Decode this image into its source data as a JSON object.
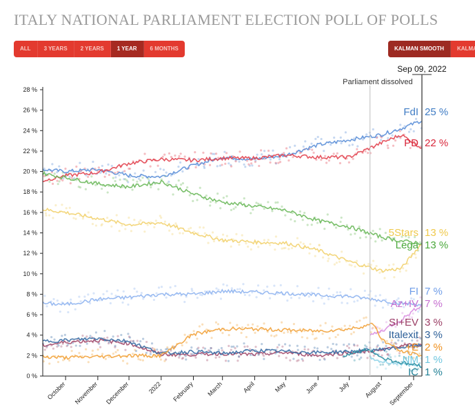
{
  "title": "ITALY NATIONAL PARLIAMENT ELECTION POLL OF POLLS",
  "range_buttons": [
    {
      "label": "ALL",
      "active": false
    },
    {
      "label": "3 YEARS",
      "active": false
    },
    {
      "label": "2 YEARS",
      "active": false
    },
    {
      "label": "1 YEAR",
      "active": true
    },
    {
      "label": "6 MONTHS",
      "active": false
    }
  ],
  "smooth_buttons": [
    {
      "label": "KALMAN SMOOTH",
      "active": true
    },
    {
      "label": "KALMAN",
      "active": false
    }
  ],
  "cursor_date": "Sep 09, 2022",
  "annotation": "Parliament dissolved",
  "chart_data": {
    "type": "line",
    "x_start": "2021-09-09",
    "x_end": "2022-09-09",
    "ylim": [
      0,
      28
    ],
    "y_ticks": [
      "0 %",
      "2 %",
      "4 %",
      "6 %",
      "8 %",
      "10 %",
      "12 %",
      "14 %",
      "16 %",
      "18 %",
      "20 %",
      "22 %",
      "24 %",
      "26 %",
      "28 %"
    ],
    "x_ticks": [
      {
        "label": "October",
        "date": "2021-10-01"
      },
      {
        "label": "November",
        "date": "2021-11-01"
      },
      {
        "label": "December",
        "date": "2021-12-01"
      },
      {
        "label": "2022",
        "date": "2022-01-01"
      },
      {
        "label": "February",
        "date": "2022-02-01"
      },
      {
        "label": "March",
        "date": "2022-03-01"
      },
      {
        "label": "April",
        "date": "2022-04-01"
      },
      {
        "label": "May",
        "date": "2022-05-01"
      },
      {
        "label": "June",
        "date": "2022-06-01"
      },
      {
        "label": "July",
        "date": "2022-07-01"
      },
      {
        "label": "August",
        "date": "2022-08-01"
      },
      {
        "label": "September",
        "date": "2022-09-01"
      }
    ],
    "dissolved_date": "2022-07-21",
    "series": [
      {
        "name": "FdI",
        "value_label": "25 %",
        "color": "#5b8fd8",
        "label_color": "#3f7cc4",
        "points": [
          [
            "2021-09-09",
            20.2
          ],
          [
            "2021-10-01",
            20.0
          ],
          [
            "2021-11-01",
            20.2
          ],
          [
            "2021-12-01",
            19.6
          ],
          [
            "2022-01-01",
            19.5
          ],
          [
            "2022-02-01",
            20.6
          ],
          [
            "2022-03-01",
            21.4
          ],
          [
            "2022-04-01",
            21.2
          ],
          [
            "2022-05-01",
            21.6
          ],
          [
            "2022-06-01",
            22.6
          ],
          [
            "2022-07-01",
            23.1
          ],
          [
            "2022-08-01",
            23.6
          ],
          [
            "2022-08-20",
            24.2
          ],
          [
            "2022-09-09",
            25.0
          ]
        ]
      },
      {
        "name": "PD",
        "value_label": "22 %",
        "color": "#e2424f",
        "label_color": "#d8263a",
        "points": [
          [
            "2021-09-09",
            19.1
          ],
          [
            "2021-10-01",
            19.6
          ],
          [
            "2021-11-01",
            19.9
          ],
          [
            "2021-12-01",
            20.8
          ],
          [
            "2022-01-01",
            21.2
          ],
          [
            "2022-02-01",
            21.1
          ],
          [
            "2022-03-01",
            21.3
          ],
          [
            "2022-04-01",
            21.3
          ],
          [
            "2022-05-01",
            21.6
          ],
          [
            "2022-06-01",
            21.4
          ],
          [
            "2022-07-01",
            21.4
          ],
          [
            "2022-08-01",
            22.8
          ],
          [
            "2022-08-20",
            23.6
          ],
          [
            "2022-09-09",
            22.3
          ]
        ]
      },
      {
        "name": "5Stars",
        "value_label": "13 %",
        "color": "#f2d26e",
        "label_color": "#efc94c",
        "points": [
          [
            "2021-09-09",
            16.3
          ],
          [
            "2021-10-01",
            16.0
          ],
          [
            "2021-11-01",
            15.4
          ],
          [
            "2021-12-01",
            14.8
          ],
          [
            "2022-01-01",
            15.0
          ],
          [
            "2022-02-01",
            14.0
          ],
          [
            "2022-03-01",
            13.3
          ],
          [
            "2022-04-01",
            13.1
          ],
          [
            "2022-05-01",
            13.0
          ],
          [
            "2022-06-01",
            12.3
          ],
          [
            "2022-07-01",
            11.2
          ],
          [
            "2022-08-01",
            10.3
          ],
          [
            "2022-08-20",
            10.5
          ],
          [
            "2022-09-09",
            13.0
          ]
        ]
      },
      {
        "name": "Lega",
        "value_label": "13 %",
        "color": "#6ab85a",
        "label_color": "#4aa83a",
        "points": [
          [
            "2021-09-09",
            19.8
          ],
          [
            "2021-10-01",
            19.4
          ],
          [
            "2021-11-01",
            18.8
          ],
          [
            "2021-12-01",
            18.5
          ],
          [
            "2022-01-01",
            19.0
          ],
          [
            "2022-02-01",
            17.8
          ],
          [
            "2022-03-01",
            17.0
          ],
          [
            "2022-04-01",
            16.6
          ],
          [
            "2022-05-01",
            16.2
          ],
          [
            "2022-06-01",
            15.2
          ],
          [
            "2022-07-01",
            14.6
          ],
          [
            "2022-08-01",
            13.6
          ],
          [
            "2022-08-20",
            13.2
          ],
          [
            "2022-09-09",
            13.0
          ]
        ]
      },
      {
        "name": "FI",
        "value_label": "7 %",
        "color": "#8fb4ef",
        "label_color": "#6f9de8",
        "points": [
          [
            "2021-09-09",
            7.1
          ],
          [
            "2021-10-01",
            7.0
          ],
          [
            "2021-11-01",
            7.5
          ],
          [
            "2021-12-01",
            7.7
          ],
          [
            "2022-01-01",
            8.0
          ],
          [
            "2022-02-01",
            8.0
          ],
          [
            "2022-03-01",
            8.3
          ],
          [
            "2022-04-01",
            8.2
          ],
          [
            "2022-05-01",
            8.1
          ],
          [
            "2022-06-01",
            7.9
          ],
          [
            "2022-07-01",
            7.8
          ],
          [
            "2022-08-01",
            7.4
          ],
          [
            "2022-08-20",
            7.1
          ],
          [
            "2022-09-09",
            7.0
          ]
        ]
      },
      {
        "name": "Az+IV",
        "value_label": "7 %",
        "color": "#d98de0",
        "label_color": "#c66fd0",
        "points": [
          [
            "2022-07-21",
            4.0
          ],
          [
            "2022-08-01",
            4.4
          ],
          [
            "2022-08-20",
            5.5
          ],
          [
            "2022-09-09",
            7.0
          ]
        ]
      },
      {
        "name": "SI+EV",
        "value_label": "3 %",
        "color": "#a34a6b",
        "label_color": "#9a3d64",
        "points": [
          [
            "2021-09-09",
            3.0
          ],
          [
            "2021-10-01",
            3.3
          ],
          [
            "2021-11-01",
            3.5
          ],
          [
            "2021-12-01",
            3.2
          ],
          [
            "2022-01-01",
            2.1
          ],
          [
            "2022-02-01",
            2.1
          ],
          [
            "2022-03-01",
            2.2
          ],
          [
            "2022-04-01",
            2.1
          ],
          [
            "2022-05-01",
            2.3
          ],
          [
            "2022-06-01",
            2.0
          ],
          [
            "2022-07-01",
            2.3
          ],
          [
            "2022-08-01",
            2.5
          ],
          [
            "2022-08-20",
            3.0
          ],
          [
            "2022-09-09",
            3.0
          ]
        ]
      },
      {
        "name": "Italexit",
        "value_label": "3 %",
        "color": "#3a6ea5",
        "label_color": "#2c5f98",
        "points": [
          [
            "2021-09-09",
            3.4
          ],
          [
            "2021-10-01",
            3.5
          ],
          [
            "2021-11-01",
            3.7
          ],
          [
            "2021-12-01",
            3.4
          ],
          [
            "2022-01-01",
            2.2
          ],
          [
            "2022-02-01",
            2.4
          ],
          [
            "2022-03-01",
            2.2
          ],
          [
            "2022-04-01",
            2.5
          ],
          [
            "2022-05-01",
            2.4
          ],
          [
            "2022-06-01",
            2.3
          ],
          [
            "2022-07-01",
            2.4
          ],
          [
            "2022-08-01",
            2.6
          ],
          [
            "2022-08-20",
            2.8
          ],
          [
            "2022-09-09",
            3.0
          ]
        ]
      },
      {
        "name": "+E",
        "value_label": "2 %",
        "color": "#f2a23a",
        "label_color": "#ef8f1c",
        "points": [
          [
            "2021-09-09",
            1.9
          ],
          [
            "2021-10-01",
            1.8
          ],
          [
            "2021-11-01",
            1.9
          ],
          [
            "2021-12-01",
            2.0
          ],
          [
            "2022-01-01",
            2.0
          ],
          [
            "2022-02-01",
            4.1
          ],
          [
            "2022-03-01",
            4.6
          ],
          [
            "2022-04-01",
            4.6
          ],
          [
            "2022-05-01",
            4.5
          ],
          [
            "2022-06-01",
            4.4
          ],
          [
            "2022-07-01",
            4.6
          ],
          [
            "2022-07-25",
            5.1
          ],
          [
            "2022-08-01",
            3.6
          ],
          [
            "2022-08-20",
            2.4
          ],
          [
            "2022-09-09",
            2.0
          ]
        ]
      },
      {
        "name": "NM",
        "value_label": "1 %",
        "color": "#8fd3e8",
        "label_color": "#6fc6df",
        "points": [
          [
            "2022-07-21",
            1.8
          ],
          [
            "2022-08-01",
            1.4
          ],
          [
            "2022-08-20",
            1.2
          ],
          [
            "2022-09-09",
            1.0
          ]
        ]
      },
      {
        "name": "IC",
        "value_label": "1 %",
        "color": "#2b8fa3",
        "label_color": "#1f7f95",
        "points": [
          [
            "2022-06-25",
            2.0
          ],
          [
            "2022-07-10",
            2.4
          ],
          [
            "2022-07-21",
            2.6
          ],
          [
            "2022-08-01",
            1.8
          ],
          [
            "2022-08-20",
            1.3
          ],
          [
            "2022-09-09",
            1.0
          ]
        ]
      }
    ]
  }
}
